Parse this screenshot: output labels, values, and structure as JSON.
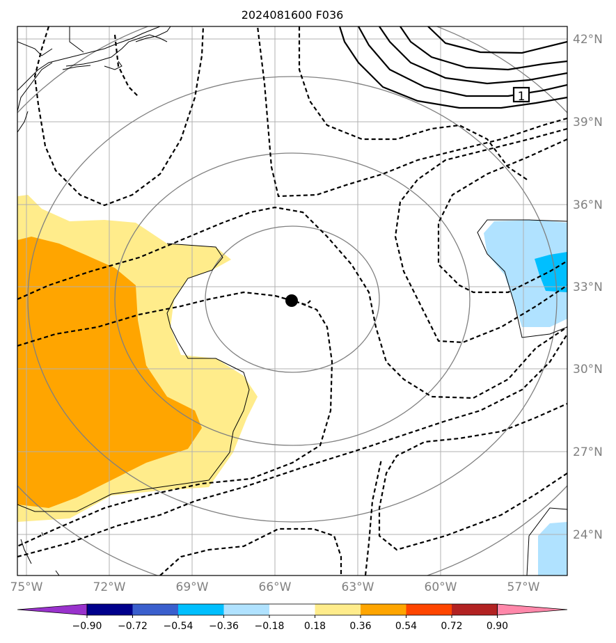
{
  "title": "2024081600 F036",
  "lat_labels": [
    "42°N",
    "39°N",
    "36°N",
    "33°N",
    "30°N",
    "27°N",
    "24°N"
  ],
  "lon_labels": [
    "75°W",
    "72°W",
    "69°W",
    "66°W",
    "63°W",
    "60°W",
    "57°W"
  ],
  "colorbar": {
    "ticks": [
      "−0.90",
      "−0.72",
      "−0.54",
      "−0.36",
      "−0.18",
      "0.18",
      "0.36",
      "0.54",
      "0.72",
      "0.90"
    ],
    "colors": [
      "#9932CC",
      "#00008B",
      "#3A5FCD",
      "#00BFFF",
      "#B0E2FF",
      "#FFFFFF",
      "#FFEC8B",
      "#FFA500",
      "#FF4500",
      "#B22222",
      "#FF88AA"
    ]
  },
  "contour_label": "1",
  "colors": {
    "grid": "#b0b0b0",
    "range_rings": "#808080",
    "coast": "#000000",
    "light_yellow": "#FFEC8B",
    "orange": "#FFA500",
    "light_blue": "#B0E2FF",
    "cyan": "#00BFFF",
    "storm_center": "#000000"
  }
}
